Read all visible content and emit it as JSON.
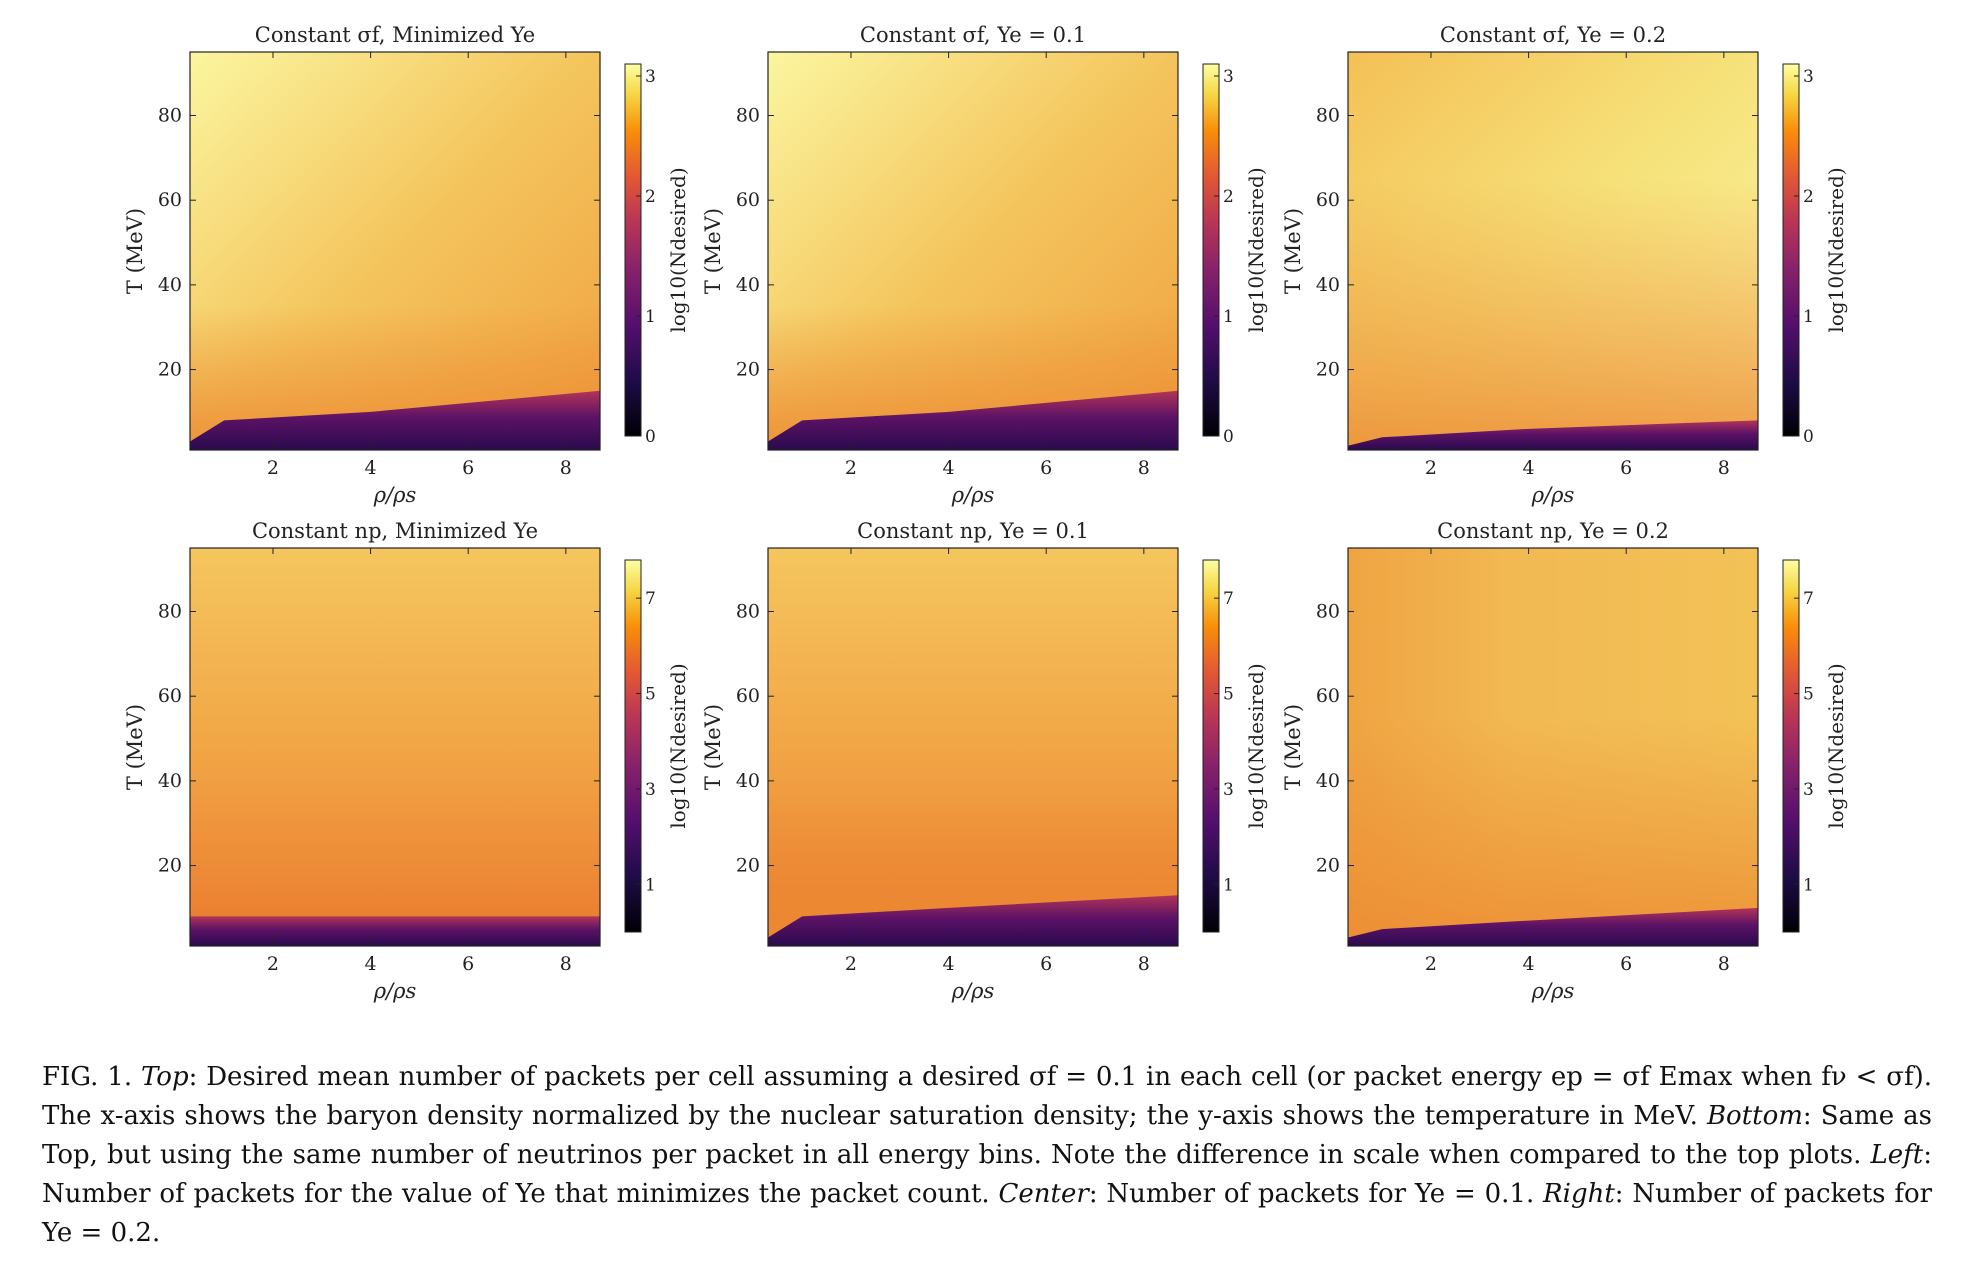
{
  "figure": {
    "panels": [
      {
        "title": "Constant σf, Minimized Ye",
        "xlabel": "ρ/ρs",
        "ylabel": "T (MeV)",
        "cbar_label": "log10(Ndesired)",
        "cbar_ticks": [
          "0",
          "1",
          "2",
          "3"
        ],
        "row": 0,
        "col": 0
      },
      {
        "title": "Constant σf, Ye = 0.1",
        "xlabel": "ρ/ρs",
        "ylabel": "T (MeV)",
        "cbar_label": "log10(Ndesired)",
        "cbar_ticks": [
          "0",
          "1",
          "2",
          "3"
        ],
        "row": 0,
        "col": 1
      },
      {
        "title": "Constant σf, Ye = 0.2",
        "xlabel": "ρ/ρs",
        "ylabel": "T (MeV)",
        "cbar_label": "log10(Ndesired)",
        "cbar_ticks": [
          "0",
          "1",
          "2",
          "3"
        ],
        "row": 0,
        "col": 2
      },
      {
        "title": "Constant np, Minimized Ye",
        "xlabel": "ρ/ρs",
        "ylabel": "T (MeV)",
        "cbar_label": "log10(Ndesired)",
        "cbar_ticks": [
          "1",
          "3",
          "5",
          "7"
        ],
        "row": 1,
        "col": 0
      },
      {
        "title": "Constant np, Ye = 0.1",
        "xlabel": "ρ/ρs",
        "ylabel": "T (MeV)",
        "cbar_label": "log10(Ndesired)",
        "cbar_ticks": [
          "1",
          "3",
          "5",
          "7"
        ],
        "row": 1,
        "col": 1
      },
      {
        "title": "Constant np, Ye = 0.2",
        "xlabel": "ρ/ρs",
        "ylabel": "T (MeV)",
        "cbar_label": "log10(Ndesired)",
        "cbar_ticks": [
          "1",
          "3",
          "5",
          "7"
        ],
        "row": 1,
        "col": 2
      }
    ],
    "x_ticks": [
      "2",
      "4",
      "6",
      "8"
    ],
    "y_ticks": [
      "20",
      "40",
      "60",
      "80"
    ]
  },
  "chart_data": [
    {
      "type": "heatmap",
      "title": "Constant σf, Minimized Ye",
      "xlabel": "ρ/ρs",
      "ylabel": "T (MeV)",
      "xlim": [
        0.3,
        8.7
      ],
      "ylim": [
        1,
        95
      ],
      "colorbar": {
        "label": "log10(Ndesired)",
        "range": [
          0,
          3.1
        ],
        "ticks": [
          0,
          1,
          2,
          3
        ]
      },
      "colormap": "inferno",
      "low_T_edge": {
        "x": [
          0.3,
          1,
          4,
          8.7
        ],
        "T": [
          3,
          8,
          10,
          15
        ]
      },
      "hot_corner": "top-left",
      "cool_band_T": 20
    },
    {
      "type": "heatmap",
      "title": "Constant σf, Ye = 0.1",
      "xlabel": "ρ/ρs",
      "ylabel": "T (MeV)",
      "xlim": [
        0.3,
        8.7
      ],
      "ylim": [
        1,
        95
      ],
      "colorbar": {
        "label": "log10(Ndesired)",
        "range": [
          0,
          3.1
        ],
        "ticks": [
          0,
          1,
          2,
          3
        ]
      },
      "colormap": "inferno",
      "low_T_edge": {
        "x": [
          0.3,
          1,
          4,
          8.7
        ],
        "T": [
          3,
          8,
          10,
          15
        ]
      },
      "hot_corner": "top-left",
      "cool_band_T": 20
    },
    {
      "type": "heatmap",
      "title": "Constant σf, Ye = 0.2",
      "xlabel": "ρ/ρs",
      "ylabel": "T (MeV)",
      "xlim": [
        0.3,
        8.7
      ],
      "ylim": [
        1,
        95
      ],
      "colorbar": {
        "label": "log10(Ndesired)",
        "range": [
          0,
          3.1
        ],
        "ticks": [
          0,
          1,
          2,
          3
        ]
      },
      "colormap": "inferno",
      "low_T_edge": {
        "x": [
          0.3,
          1,
          4,
          8.7
        ],
        "T": [
          2,
          4,
          6,
          8
        ]
      },
      "hot_corner": "bottom-right",
      "cool_band_T": 50
    },
    {
      "type": "heatmap",
      "title": "Constant np, Minimized Ye",
      "xlabel": "ρ/ρs",
      "ylabel": "T (MeV)",
      "xlim": [
        0.3,
        8.7
      ],
      "ylim": [
        1,
        95
      ],
      "colorbar": {
        "label": "log10(Ndesired)",
        "range": [
          0,
          7.8
        ],
        "ticks": [
          1,
          3,
          5,
          7
        ]
      },
      "colormap": "inferno",
      "low_T_edge": {
        "x": [
          0.3,
          1,
          4,
          8.7
        ],
        "T": [
          8,
          8,
          8,
          8
        ]
      },
      "hot_corner": "top-left",
      "cool_band_T": 0
    },
    {
      "type": "heatmap",
      "title": "Constant np, Ye = 0.1",
      "xlabel": "ρ/ρs",
      "ylabel": "T (MeV)",
      "xlim": [
        0.3,
        8.7
      ],
      "ylim": [
        1,
        95
      ],
      "colorbar": {
        "label": "log10(Ndesired)",
        "range": [
          0,
          7.8
        ],
        "ticks": [
          1,
          3,
          5,
          7
        ]
      },
      "colormap": "inferno",
      "low_T_edge": {
        "x": [
          0.3,
          1,
          4,
          8.7
        ],
        "T": [
          3,
          8,
          10,
          13
        ]
      },
      "hot_corner": "top-left",
      "cool_band_T": 20
    },
    {
      "type": "heatmap",
      "title": "Constant np, Ye = 0.2",
      "xlabel": "ρ/ρs",
      "ylabel": "T (MeV)",
      "xlim": [
        0.3,
        8.7
      ],
      "ylim": [
        1,
        95
      ],
      "colorbar": {
        "label": "log10(Ndesired)",
        "range": [
          0,
          7.8
        ],
        "ticks": [
          1,
          3,
          5,
          7
        ]
      },
      "colormap": "inferno",
      "low_T_edge": {
        "x": [
          0.3,
          1,
          4,
          8.7
        ],
        "T": [
          3,
          5,
          7,
          10
        ]
      },
      "hot_corner": "none",
      "cool_band_T": 40
    }
  ],
  "caption": {
    "fig_label": "FIG. 1.",
    "top_label": "Top",
    "top_text": ": Desired mean number of packets per cell assuming a desired σf = 0.1 in each cell (or packet energy ep = σf Emax when fν < σf). The x-axis shows the baryon density normalized by the nuclear saturation density; the y-axis shows the temperature in MeV.",
    "bottom_label": "Bottom",
    "bottom_text": ": Same as Top, but using the same number of neutrinos per packet in all energy bins. Note the difference in scale when compared to the top plots.",
    "left_label": "Left",
    "left_text": ": Number of packets for the value of Ye that minimizes the packet count.",
    "center_label": "Center",
    "center_text": ": Number of packets for Ye = 0.1.",
    "right_label": "Right",
    "right_text": ": Number of packets for Ye = 0.2."
  }
}
